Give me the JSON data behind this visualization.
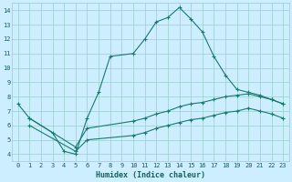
{
  "xlabel": "Humidex (Indice chaleur)",
  "bg_color": "#cceeff",
  "grid_color": "#99cccc",
  "line_color": "#1a7a6e",
  "marker": "+",
  "markersize": 3,
  "linewidth": 0.8,
  "xlim": [
    -0.5,
    23.5
  ],
  "ylim": [
    3.5,
    14.5
  ],
  "xticks": [
    0,
    1,
    2,
    3,
    4,
    5,
    6,
    7,
    8,
    9,
    10,
    11,
    12,
    13,
    14,
    15,
    16,
    17,
    18,
    19,
    20,
    21,
    22,
    23
  ],
  "yticks": [
    4,
    5,
    6,
    7,
    8,
    9,
    10,
    11,
    12,
    13,
    14
  ],
  "line1_x": [
    0,
    1,
    3,
    4,
    5,
    6,
    7,
    8,
    10,
    11,
    12,
    13,
    14,
    15,
    16,
    17,
    18,
    19,
    20,
    21,
    22,
    23
  ],
  "line1_y": [
    7.5,
    6.5,
    5.5,
    4.2,
    4.0,
    6.5,
    8.3,
    10.8,
    11.0,
    12.0,
    13.2,
    13.5,
    14.2,
    13.4,
    12.5,
    10.8,
    9.5,
    8.5,
    8.3,
    8.1,
    7.8,
    7.5
  ],
  "line2_x": [
    1,
    5,
    6,
    10,
    11,
    12,
    13,
    14,
    15,
    16,
    17,
    18,
    19,
    20,
    21,
    22,
    23
  ],
  "line2_y": [
    6.5,
    4.5,
    5.8,
    6.3,
    6.5,
    6.8,
    7.0,
    7.3,
    7.5,
    7.6,
    7.8,
    8.0,
    8.1,
    8.2,
    8.0,
    7.8,
    7.5
  ],
  "line3_x": [
    1,
    5,
    6,
    10,
    11,
    12,
    13,
    14,
    15,
    16,
    17,
    18,
    19,
    20,
    21,
    22,
    23
  ],
  "line3_y": [
    6.0,
    4.2,
    5.0,
    5.3,
    5.5,
    5.8,
    6.0,
    6.2,
    6.4,
    6.5,
    6.7,
    6.9,
    7.0,
    7.2,
    7.0,
    6.8,
    6.5
  ],
  "xlabel_fontsize": 6,
  "xlabel_color": "#1a5f5a",
  "tick_fontsize": 5,
  "tick_color": "#1a5f5a"
}
